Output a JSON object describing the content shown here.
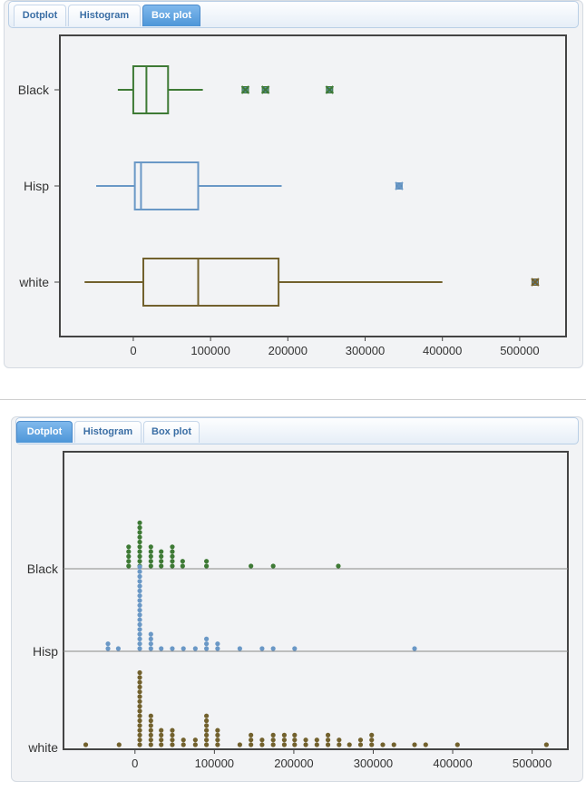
{
  "tabs": [
    "Dotplot",
    "Histogram",
    "Box plot"
  ],
  "top_panel": {
    "active_tab": "Box plot"
  },
  "bottom_panel": {
    "active_tab": "Dotplot"
  },
  "colors": {
    "Black": "#3e7a35",
    "Hisp": "#6a98c6",
    "white": "#72612d",
    "outlier_fill": "#5b8bb8",
    "frame": "#444444",
    "baseline": "#888888"
  },
  "chart_data": [
    {
      "type": "box",
      "title": "",
      "xlabel": "",
      "ylabel": "",
      "xlim": [
        -95000,
        560000
      ],
      "xticks": [
        0,
        100000,
        200000,
        300000,
        400000,
        500000
      ],
      "xtick_labels": [
        "0",
        "100000",
        "200000",
        "300000",
        "400000",
        "500000"
      ],
      "groups": [
        {
          "name": "Black",
          "whisker_low": -20000,
          "q1": 0,
          "median": 17000,
          "q3": 45000,
          "whisker_high": 90000,
          "outliers": [
            145000,
            171000,
            254000
          ]
        },
        {
          "name": "Hisp",
          "whisker_low": -48000,
          "q1": 2000,
          "median": 10000,
          "q3": 84000,
          "whisker_high": 192000,
          "outliers": [
            344000
          ]
        },
        {
          "name": "white",
          "whisker_low": -63000,
          "q1": 13000,
          "median": 84000,
          "q3": 188000,
          "whisker_high": 400000,
          "outliers": [
            520000
          ]
        }
      ]
    },
    {
      "type": "dotplot",
      "title": "",
      "xlabel": "",
      "ylabel": "",
      "xlim": [
        -90000,
        545000
      ],
      "xticks": [
        0,
        100000,
        200000,
        300000,
        400000,
        500000
      ],
      "xtick_labels": [
        "0",
        "100000",
        "200000",
        "300000",
        "400000",
        "500000"
      ],
      "bin_width": 13800,
      "groups": [
        {
          "name": "Black",
          "bins": [
            [
              -8000,
              5
            ],
            [
              6000,
              10
            ],
            [
              20000,
              5
            ],
            [
              33000,
              4
            ],
            [
              47000,
              5
            ],
            [
              60000,
              2
            ],
            [
              90000,
              2
            ],
            [
              146000,
              1
            ],
            [
              174000,
              1
            ],
            [
              256000,
              1
            ]
          ]
        },
        {
          "name": "Hisp",
          "bins": [
            [
              -34000,
              2
            ],
            [
              -21000,
              1
            ],
            [
              6000,
              18
            ],
            [
              20000,
              4
            ],
            [
              33000,
              1
            ],
            [
              47000,
              1
            ],
            [
              61000,
              1
            ],
            [
              76000,
              1
            ],
            [
              90000,
              3
            ],
            [
              104000,
              2
            ],
            [
              132000,
              1
            ],
            [
              160000,
              1
            ],
            [
              174000,
              1
            ],
            [
              201000,
              1
            ],
            [
              352000,
              1
            ]
          ]
        },
        {
          "name": "white",
          "bins": [
            [
              -62000,
              1
            ],
            [
              -20000,
              1
            ],
            [
              6000,
              16
            ],
            [
              20000,
              7
            ],
            [
              33000,
              4
            ],
            [
              47000,
              4
            ],
            [
              61000,
              2
            ],
            [
              76000,
              2
            ],
            [
              90000,
              7
            ],
            [
              104000,
              4
            ],
            [
              132000,
              1
            ],
            [
              146000,
              3
            ],
            [
              160000,
              2
            ],
            [
              174000,
              3
            ],
            [
              188000,
              3
            ],
            [
              201000,
              3
            ],
            [
              215000,
              2
            ],
            [
              229000,
              2
            ],
            [
              243000,
              3
            ],
            [
              257000,
              2
            ],
            [
              270000,
              1
            ],
            [
              284000,
              2
            ],
            [
              298000,
              3
            ],
            [
              312000,
              1
            ],
            [
              326000,
              1
            ],
            [
              352000,
              1
            ],
            [
              366000,
              1
            ],
            [
              406000,
              1
            ],
            [
              518000,
              1
            ]
          ]
        }
      ]
    }
  ]
}
